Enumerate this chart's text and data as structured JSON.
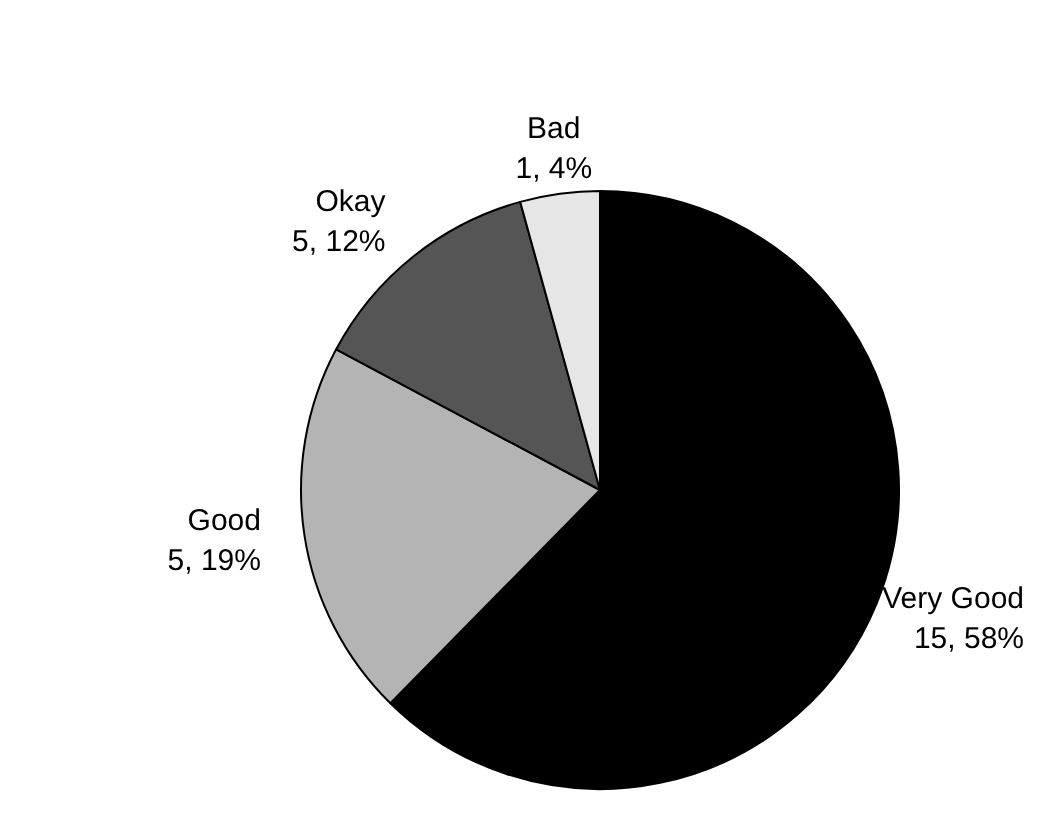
{
  "chart_data": {
    "type": "pie",
    "categories": [
      "Very Good",
      "Good",
      "Okay",
      "Bad"
    ],
    "values": [
      58,
      19,
      12,
      4
    ],
    "value_labels": [
      "15, 58%",
      "5, 19%",
      "5, 12%",
      "1, 4%"
    ],
    "colors": [
      "#000000",
      "#b4b4b4",
      "#555555",
      "#e6e6e6"
    ],
    "legend": false
  }
}
